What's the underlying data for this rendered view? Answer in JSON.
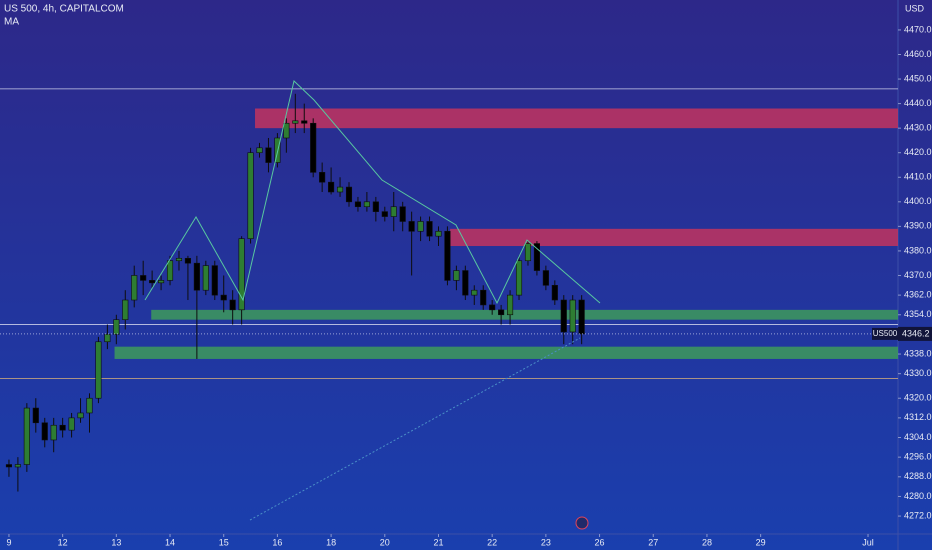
{
  "chart_data": {
    "type": "candlestick",
    "title": "US 500, 4h, CAPITALCOM",
    "subtitle": "MA",
    "y_axis_unit": "USD",
    "symbol": "US500",
    "open": [
      4293,
      4292,
      4293,
      4316,
      4310,
      4303,
      4309,
      4307,
      4312,
      4314,
      4320,
      4343,
      4346,
      4352,
      4360,
      4370,
      4368,
      4367,
      4368,
      4376,
      4377,
      4375,
      4364,
      4374,
      4362,
      4360,
      4356,
      4385,
      4420,
      4422,
      4416,
      4426,
      4432,
      4433,
      4432,
      4412,
      4408,
      4404,
      4406,
      4400,
      4398,
      4400,
      4396,
      4394,
      4398,
      4392,
      4388,
      4392,
      4386,
      4388,
      4368,
      4372,
      4362,
      4364,
      4358,
      4356,
      4354,
      4362,
      4376,
      4383,
      4372,
      4366,
      4360,
      4347,
      4360
    ],
    "high": [
      4295,
      4296,
      4318,
      4320,
      4312,
      4312,
      4312,
      4314,
      4320,
      4322,
      4345,
      4350,
      4354,
      4364,
      4374,
      4376,
      4372,
      4370,
      4378,
      4380,
      4378,
      4378,
      4376,
      4376,
      4370,
      4364,
      4386,
      4422,
      4424,
      4426,
      4428,
      4434,
      4444,
      4440,
      4434,
      4416,
      4414,
      4410,
      4408,
      4402,
      4404,
      4402,
      4398,
      4404,
      4400,
      4396,
      4394,
      4394,
      4390,
      4390,
      4374,
      4374,
      4366,
      4366,
      4360,
      4358,
      4364,
      4378,
      4384,
      4384,
      4374,
      4368,
      4362,
      4362,
      4362
    ],
    "low": [
      4288,
      4282,
      4290,
      4306,
      4300,
      4298,
      4304,
      4304,
      4310,
      4306,
      4318,
      4340,
      4342,
      4348,
      4357,
      4362,
      4365,
      4364,
      4366,
      4372,
      4360,
      4336,
      4362,
      4360,
      4355,
      4350,
      4350,
      4383,
      4418,
      4412,
      4414,
      4420,
      4428,
      4428,
      4410,
      4404,
      4403,
      4402,
      4398,
      4396,
      4396,
      4392,
      4392,
      4388,
      4388,
      4370,
      4384,
      4384,
      4382,
      4366,
      4364,
      4360,
      4358,
      4356,
      4354,
      4350,
      4350,
      4360,
      4374,
      4370,
      4364,
      4358,
      4342,
      4342,
      4342
    ],
    "close": [
      4292,
      4293,
      4316,
      4310,
      4303,
      4309,
      4307,
      4312,
      4314,
      4320,
      4343,
      4346,
      4352,
      4360,
      4370,
      4368,
      4367,
      4368,
      4376,
      4377,
      4375,
      4364,
      4374,
      4362,
      4360,
      4356,
      4385,
      4420,
      4422,
      4416,
      4426,
      4432,
      4433,
      4432,
      4412,
      4408,
      4404,
      4406,
      4400,
      4398,
      4400,
      4396,
      4394,
      4398,
      4392,
      4388,
      4392,
      4386,
      4388,
      4368,
      4372,
      4362,
      4364,
      4358,
      4356,
      4354,
      4362,
      4376,
      4383,
      4372,
      4366,
      4360,
      4347,
      4360,
      4346.2
    ],
    "up_color": "#2e7d32",
    "down_color": "#000000",
    "zones": [
      {
        "low": 4430,
        "high": 4438,
        "start": 27.5,
        "color": "#c2345e"
      },
      {
        "low": 4382,
        "high": 4389,
        "start": 49.3,
        "color": "#c2345e"
      },
      {
        "low": 4352,
        "high": 4356,
        "start": 15.9,
        "color": "#3d9a5a"
      },
      {
        "low": 4336,
        "high": 4341,
        "start": 11.8,
        "color": "#3d9a5a"
      }
    ],
    "levels": [
      4446,
      4350,
      4328
    ],
    "xlim": [
      -1,
      99.35
    ],
    "ylim": [
      4264.7,
      4482.2
    ],
    "xticks": [
      {
        "value": 0,
        "label": "9"
      },
      {
        "value": 6,
        "label": "12"
      },
      {
        "value": 12,
        "label": "13"
      },
      {
        "value": 18,
        "label": "14"
      },
      {
        "value": 24,
        "label": "15"
      },
      {
        "value": 30,
        "label": "16"
      },
      {
        "value": 36,
        "label": "18"
      },
      {
        "value": 42,
        "label": "20"
      },
      {
        "value": 48,
        "label": "21"
      },
      {
        "value": 54,
        "label": "22"
      },
      {
        "value": 60,
        "label": "23"
      },
      {
        "value": 66,
        "label": "26"
      },
      {
        "value": 72,
        "label": "27"
      },
      {
        "value": 78,
        "label": "28"
      },
      {
        "value": 84,
        "label": "29"
      },
      {
        "value": 96,
        "label": "Jul"
      }
    ],
    "yticks": [
      {
        "value": 4470,
        "label": "4470.0"
      },
      {
        "value": 4460,
        "label": "4460.0"
      },
      {
        "value": 4450,
        "label": "4450.0"
      },
      {
        "value": 4440,
        "label": "4440.0"
      },
      {
        "value": 4430,
        "label": "4430.0"
      },
      {
        "value": 4420,
        "label": "4420.0"
      },
      {
        "value": 4410,
        "label": "4410.0"
      },
      {
        "value": 4400,
        "label": "4400.0"
      },
      {
        "value": 4390,
        "label": "4390.0"
      },
      {
        "value": 4380,
        "label": "4380.0"
      },
      {
        "value": 4370,
        "label": "4370.0"
      },
      {
        "value": 4362,
        "label": "4362.0"
      },
      {
        "value": 4354,
        "label": "4354.0"
      },
      {
        "value": 4338,
        "label": "4338.0"
      },
      {
        "value": 4330,
        "label": "4330.0"
      },
      {
        "value": 4320,
        "label": "4320.0"
      },
      {
        "value": 4312,
        "label": "4312.0"
      },
      {
        "value": 4304,
        "label": "4304.0"
      },
      {
        "value": 4296,
        "label": "4296.0"
      },
      {
        "value": 4288,
        "label": "4288.0"
      },
      {
        "value": 4280,
        "label": "4280.0"
      },
      {
        "value": 4272,
        "label": "4272.0"
      }
    ]
  }
}
